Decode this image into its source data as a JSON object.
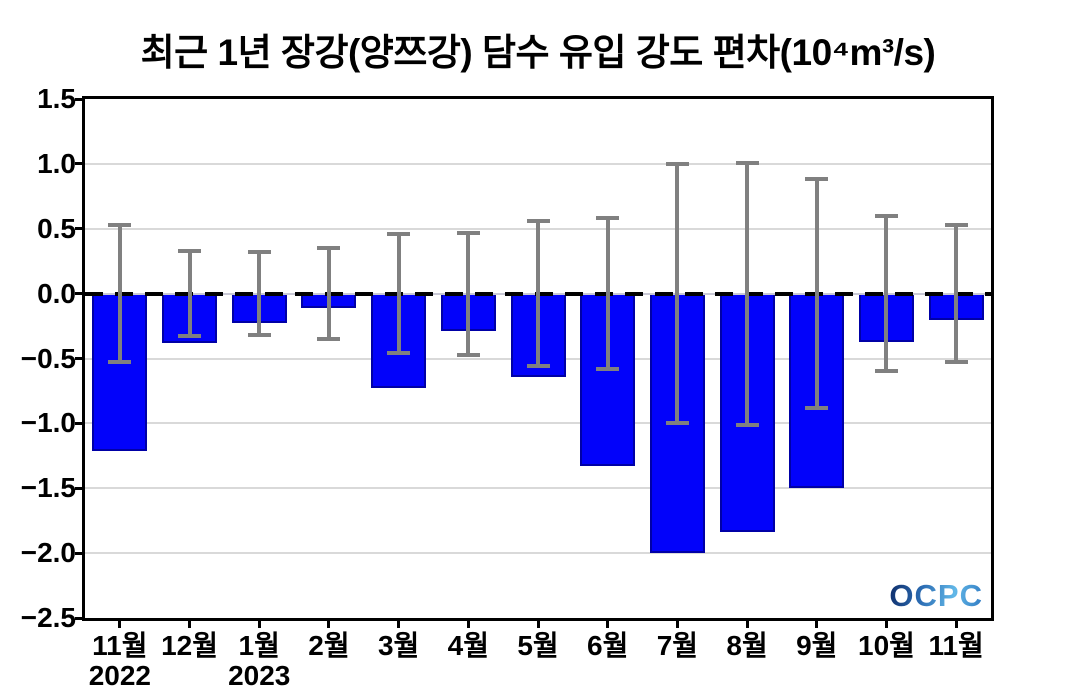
{
  "chart_data": {
    "type": "bar",
    "title": "최근 1년 장강(양쯔강) 담수 유입 강도 편차(10⁴m³/s)",
    "categories": [
      "11월",
      "12월",
      "1월",
      "2월",
      "3월",
      "4월",
      "5월",
      "6월",
      "7월",
      "8월",
      "9월",
      "10월",
      "11월"
    ],
    "year_labels": [
      {
        "category_index": 0,
        "label": "2022"
      },
      {
        "category_index": 2,
        "label": "2023"
      }
    ],
    "values": [
      -1.21,
      -0.38,
      -0.23,
      -0.11,
      -0.73,
      -0.29,
      -0.64,
      -1.33,
      -2.0,
      -1.84,
      -1.5,
      -0.37,
      -0.2
    ],
    "error_bars": {
      "centered_at": 0,
      "half_widths": [
        0.53,
        0.33,
        0.32,
        0.35,
        0.46,
        0.47,
        0.56,
        0.58,
        1.0,
        1.01,
        0.88,
        0.6,
        0.53
      ]
    },
    "ylim": [
      -2.5,
      1.5
    ],
    "yticks": [
      1.5,
      1.0,
      0.5,
      0.0,
      -0.5,
      -1.0,
      -1.5,
      -2.0,
      -2.5
    ],
    "grid": true,
    "bar_color": "#0202fa",
    "error_color": "#808080",
    "watermark": "OCPC"
  }
}
